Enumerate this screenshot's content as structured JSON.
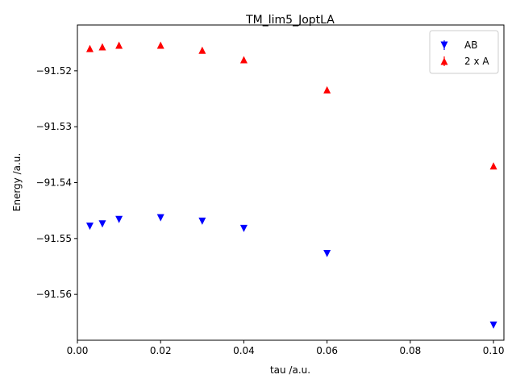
{
  "chart_data": {
    "type": "scatter",
    "title": "TM_lim5_JoptLA",
    "xlabel": "tau /a.u.",
    "ylabel": "Energy /a.u.",
    "xlim": [
      0.0,
      0.1025
    ],
    "ylim": [
      -91.5682,
      -91.5118
    ],
    "xticks": [
      0.0,
      0.02,
      0.04,
      0.06,
      0.08,
      0.1
    ],
    "xtick_labels": [
      "0.00",
      "0.02",
      "0.04",
      "0.06",
      "0.08",
      "0.10"
    ],
    "yticks": [
      -91.52,
      -91.53,
      -91.54,
      -91.55,
      -91.56
    ],
    "ytick_labels": [
      "−91.52",
      "−91.53",
      "−91.54",
      "−91.55",
      "−91.56"
    ],
    "grid": false,
    "legend_position": "top-right",
    "series": [
      {
        "name": "AB",
        "marker": "triangle-down",
        "color": "#0000ff",
        "x": [
          0.003,
          0.006,
          0.01,
          0.02,
          0.03,
          0.04,
          0.06,
          0.1
        ],
        "y": [
          -91.5478,
          -91.5474,
          -91.5466,
          -91.5463,
          -91.5469,
          -91.5482,
          -91.5527,
          -91.5655
        ]
      },
      {
        "name": "2 x A",
        "marker": "triangle-up",
        "color": "#ff0000",
        "x": [
          0.003,
          0.006,
          0.01,
          0.02,
          0.03,
          0.04,
          0.06,
          0.1
        ],
        "y": [
          -91.516,
          -91.5157,
          -91.5154,
          -91.5154,
          -91.5163,
          -91.518,
          -91.5234,
          -91.537
        ]
      }
    ]
  }
}
